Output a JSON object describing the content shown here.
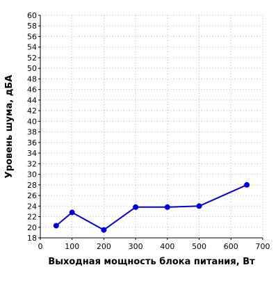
{
  "chart_data": {
    "type": "line",
    "title": "",
    "xlabel": "Выходная мощность блока питания, Вт",
    "ylabel": "Уровень шума, дБА",
    "xlim": [
      0,
      700
    ],
    "ylim": [
      18,
      60
    ],
    "x_ticks": [
      0,
      100,
      200,
      300,
      400,
      500,
      600,
      700
    ],
    "y_ticks": [
      18,
      20,
      22,
      24,
      26,
      28,
      30,
      32,
      34,
      36,
      38,
      40,
      42,
      44,
      46,
      48,
      50,
      52,
      54,
      56,
      58,
      60
    ],
    "grid": true,
    "legend": "none",
    "series": [
      {
        "color": "#0000dd",
        "x": [
          50,
          100,
          200,
          300,
          400,
          500,
          650
        ],
        "y": [
          20.3,
          22.8,
          19.5,
          23.8,
          23.8,
          24.0,
          28.0
        ]
      }
    ]
  }
}
